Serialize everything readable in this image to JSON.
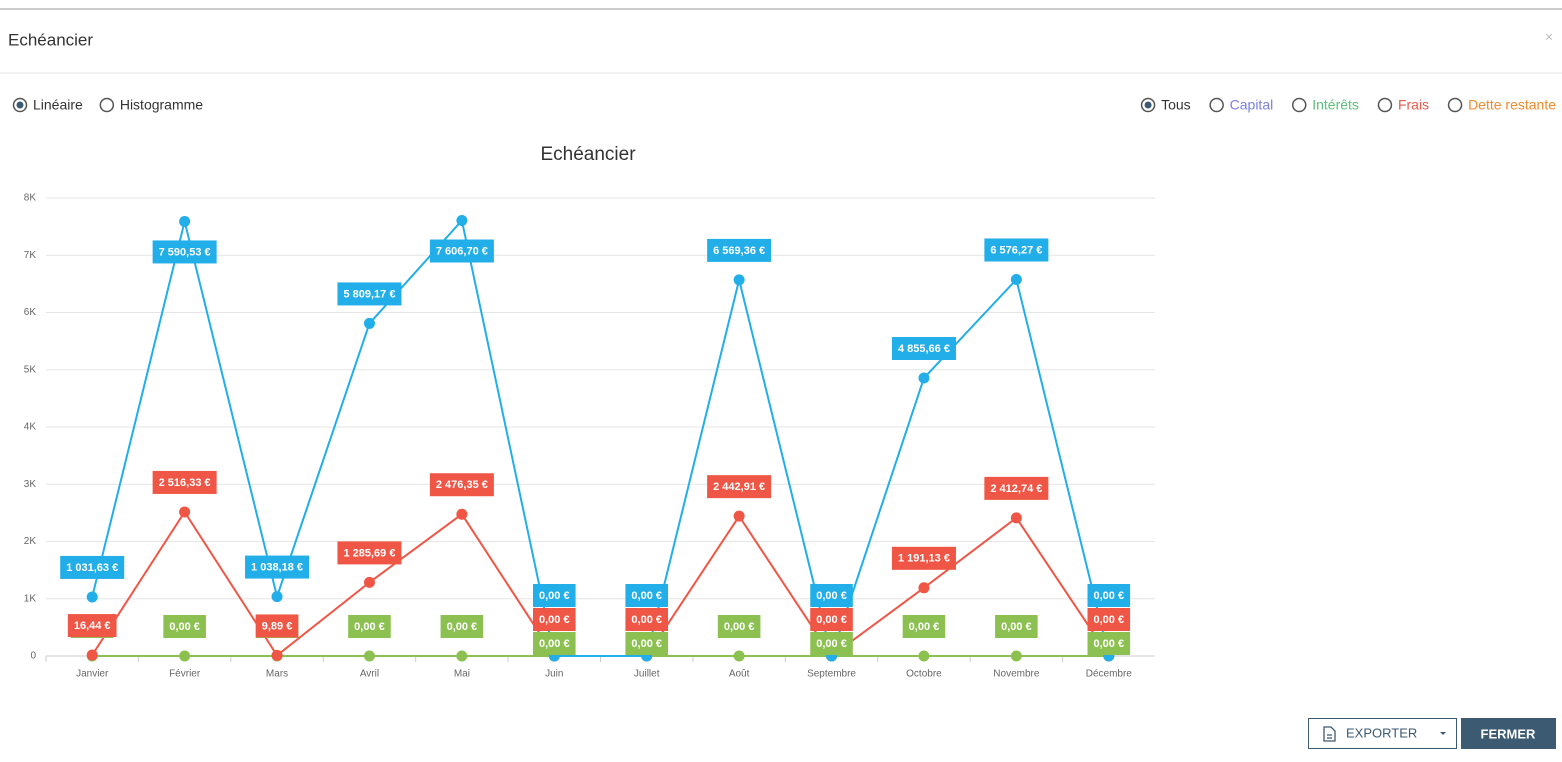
{
  "header": {
    "title": "Echéancier",
    "close": "×"
  },
  "view_options": [
    "Linéaire",
    "Histogramme"
  ],
  "filters": [
    {
      "label": "Tous",
      "color": "#333333"
    },
    {
      "label": "Capital",
      "color": "#7b7fdc"
    },
    {
      "label": "Intérêts",
      "color": "#5cbf7c"
    },
    {
      "label": "Frais",
      "color": "#ea5a4e"
    },
    {
      "label": "Dette restante",
      "color": "#f08a2c"
    }
  ],
  "buttons": {
    "export": "EXPORTER",
    "close": "FERMER"
  },
  "chart_data": {
    "type": "line",
    "title": "Echéancier",
    "categories": [
      "Janvier",
      "Février",
      "Mars",
      "Avril",
      "Mai",
      "Juin",
      "Juillet",
      "Août",
      "Septembre",
      "Octobre",
      "Novembre",
      "Décembre"
    ],
    "series": [
      {
        "color": "#22aee8",
        "values": [
          1031.63,
          7590.53,
          1038.18,
          5809.17,
          7606.7,
          0,
          0,
          6569.36,
          0,
          4855.66,
          6576.27,
          0
        ],
        "value_labels": [
          "1 031,63 €",
          "7 590,53 €",
          "1 038,18 €",
          "5 809,17 €",
          "7 606,70 €",
          "0,00 €",
          "0,00 €",
          "6 569,36 €",
          "0,00 €",
          "4 855,66 €",
          "6 576,27 €",
          "0,00 €"
        ]
      },
      {
        "color": "#ef5645",
        "values": [
          16.44,
          2516.33,
          9.89,
          1285.69,
          2476.35,
          0,
          0,
          2442.91,
          0,
          1191.13,
          2412.74,
          0
        ],
        "value_labels": [
          "16,44 €",
          "2 516,33 €",
          "9,89 €",
          "1 285,69 €",
          "2 476,35 €",
          "0,00 €",
          "0,00 €",
          "2 442,91 €",
          "0,00 €",
          "1 191,13 €",
          "2 412,74 €",
          "0,00 €"
        ]
      },
      {
        "color": "#8cc152",
        "values": [
          0,
          0,
          0,
          0,
          0,
          0,
          0,
          0,
          0,
          0,
          0,
          0
        ],
        "value_labels": [
          "0,00 €",
          "0,00 €",
          "0,00 €",
          "0,00 €",
          "0,00 €",
          "0,00 €",
          "0,00 €",
          "0,00 €",
          "0,00 €",
          "0,00 €",
          "0,00 €",
          "0,00 €"
        ]
      }
    ],
    "ylim": [
      0,
      8000
    ],
    "yticks": [
      0,
      {
        "value": 1000,
        "label": "1K"
      },
      {
        "value": 2000,
        "label": "2K"
      },
      {
        "value": 3000,
        "label": "3K"
      },
      {
        "value": 4000,
        "label": "4K"
      },
      {
        "value": 5000,
        "label": "5K"
      },
      {
        "value": 6000,
        "label": "6K"
      },
      {
        "value": 7000,
        "label": "7K"
      },
      {
        "value": 8000,
        "label": "8K"
      }
    ],
    "grid": true
  }
}
